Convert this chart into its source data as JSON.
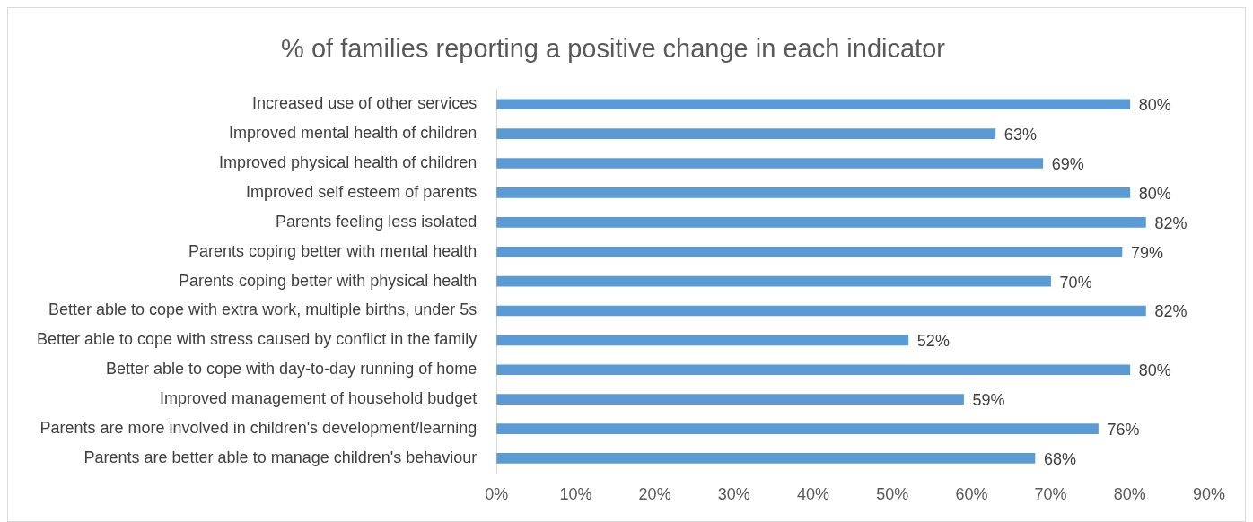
{
  "chart_data": {
    "type": "bar",
    "orientation": "horizontal",
    "title": "% of families reporting a positive change in each indicator",
    "categories": [
      "Increased use of other services",
      "Improved mental health of children",
      "Improved physical health of children",
      "Improved self esteem of parents",
      "Parents feeling less isolated",
      "Parents coping better with mental health",
      "Parents coping better with physical health",
      "Better able to cope with extra work, multiple births, under 5s",
      "Better able to cope with stress caused by conflict in the family",
      "Better able to cope with day-to-day running of home",
      "Improved management of household budget",
      "Parents are more involved in children's development/learning",
      "Parents are better able to manage children's behaviour"
    ],
    "values": [
      80,
      63,
      69,
      80,
      82,
      79,
      70,
      82,
      52,
      80,
      59,
      76,
      68
    ],
    "value_labels": [
      "80%",
      "63%",
      "69%",
      "80%",
      "82%",
      "79%",
      "70%",
      "82%",
      "52%",
      "80%",
      "59%",
      "76%",
      "68%"
    ],
    "color": "#5b9bd5",
    "xlim": [
      0,
      90
    ],
    "xticks": [
      {
        "value": 0,
        "label": "0%"
      },
      {
        "value": 10,
        "label": "10%"
      },
      {
        "value": 20,
        "label": "20%"
      },
      {
        "value": 30,
        "label": "30%"
      },
      {
        "value": 40,
        "label": "40%"
      },
      {
        "value": 50,
        "label": "50%"
      },
      {
        "value": 60,
        "label": "60%"
      },
      {
        "value": 70,
        "label": "70%"
      },
      {
        "value": 80,
        "label": "80%"
      },
      {
        "value": 90,
        "label": "90%"
      }
    ],
    "grid": false,
    "legend": false
  }
}
